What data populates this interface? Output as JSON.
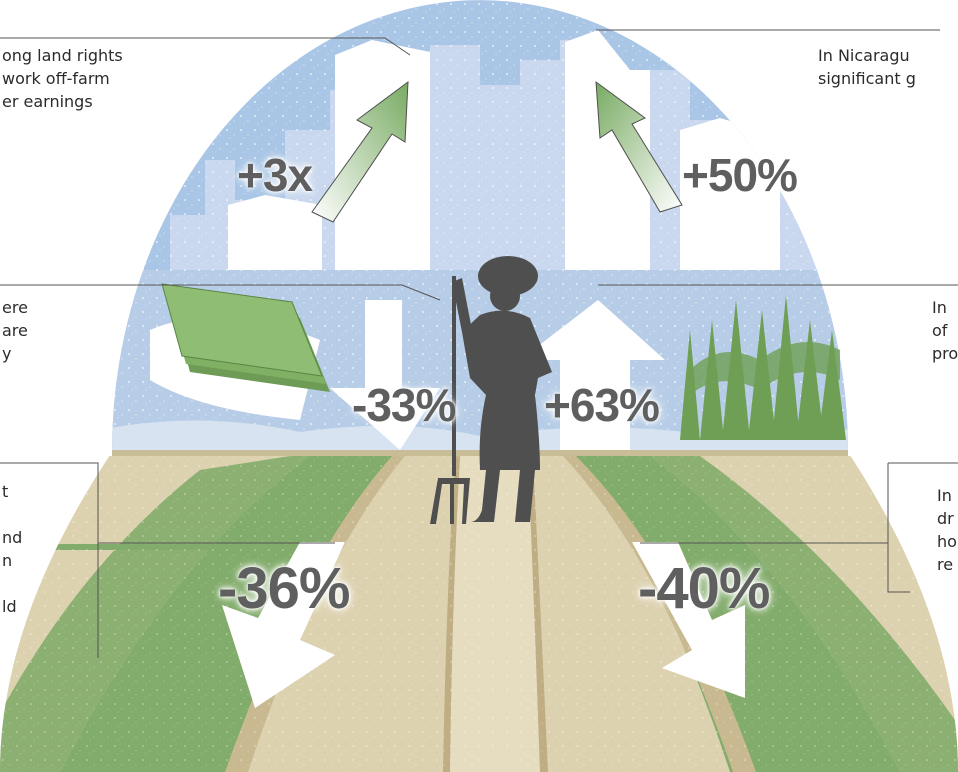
{
  "captions": {
    "top_left": "ong land rights\nwork off-farm\ner earnings",
    "top_right": "In Nicaragu\nsignificant g",
    "mid_left": "ere\nare\ny",
    "mid_right": "In\nof\npro",
    "low_left": "t\n\nnd\nn\n\nld",
    "low_right": "In\ndr\nho\nre"
  },
  "stats": {
    "off_farm": "+3x",
    "nicaragua": "+50%",
    "left_mid": "-33%",
    "right_mid": "+63%",
    "left_low": "-36%",
    "right_low": "-40%"
  },
  "colors": {
    "sky": "#a9c6e6",
    "buildings_far": "#c9d8ee",
    "field_green": "#82ac6b",
    "path_sand": "#ddd2b0",
    "arrow_green": "#79ab63",
    "silhouette": "#4f4f4f"
  }
}
